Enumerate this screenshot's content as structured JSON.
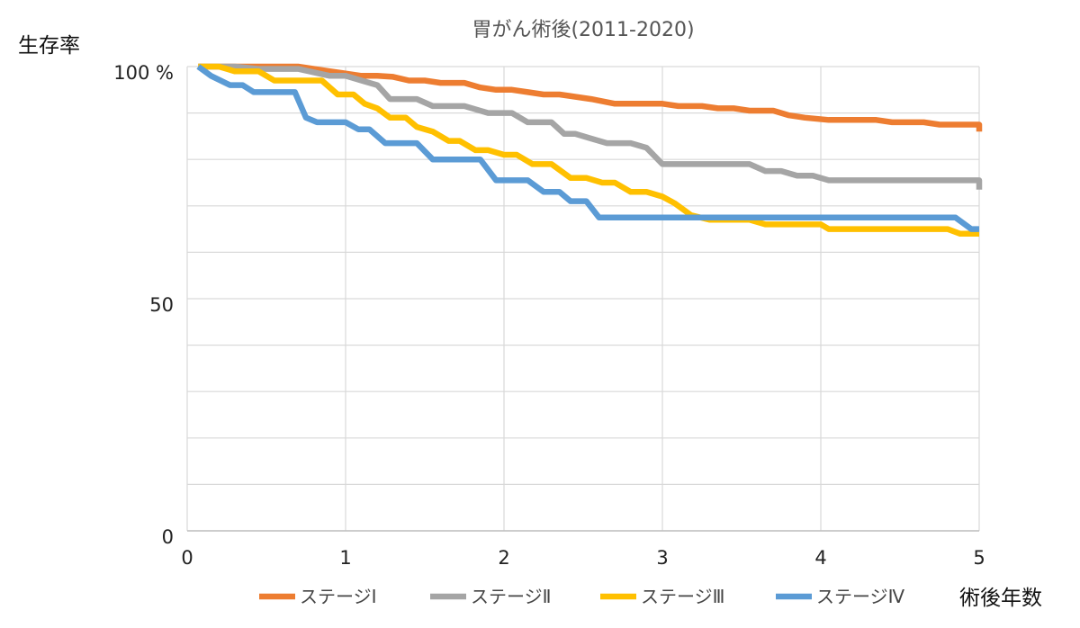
{
  "chart_data": {
    "type": "line",
    "title": "胃がん術後(2011-2020)",
    "ylabel": "生存率",
    "xlabel": "術後年数",
    "xlim": [
      0,
      5
    ],
    "ylim": [
      0,
      100
    ],
    "x_ticks": [
      "0",
      "1",
      "2",
      "3",
      "4",
      "5"
    ],
    "y_ticks": [
      {
        "value": 100,
        "label": "100 %"
      },
      {
        "value": 50,
        "label": "50"
      },
      {
        "value": 0,
        "label": "0"
      }
    ],
    "grid": true,
    "legend_position": "bottom",
    "series": [
      {
        "name": "ステージⅠ",
        "color": "#ED7D31",
        "points": [
          [
            0.07,
            100
          ],
          [
            0.5,
            100
          ],
          [
            0.7,
            100
          ],
          [
            0.8,
            99.5
          ],
          [
            0.9,
            99
          ],
          [
            1,
            98.5
          ],
          [
            1.1,
            98
          ],
          [
            1.2,
            98
          ],
          [
            1.3,
            97.8
          ],
          [
            1.4,
            97
          ],
          [
            1.5,
            97
          ],
          [
            1.6,
            96.5
          ],
          [
            1.75,
            96.5
          ],
          [
            1.85,
            95.5
          ],
          [
            1.95,
            95
          ],
          [
            2.05,
            95
          ],
          [
            2.15,
            94.5
          ],
          [
            2.25,
            94
          ],
          [
            2.35,
            94
          ],
          [
            2.55,
            93
          ],
          [
            2.7,
            92
          ],
          [
            2.85,
            92
          ],
          [
            3,
            92
          ],
          [
            3.1,
            91.5
          ],
          [
            3.25,
            91.5
          ],
          [
            3.35,
            91
          ],
          [
            3.45,
            91
          ],
          [
            3.55,
            90.5
          ],
          [
            3.7,
            90.5
          ],
          [
            3.8,
            89.5
          ],
          [
            3.9,
            89
          ],
          [
            4.05,
            88.5
          ],
          [
            4.2,
            88.5
          ],
          [
            4.35,
            88.5
          ],
          [
            4.45,
            88
          ],
          [
            4.55,
            88
          ],
          [
            4.65,
            88
          ],
          [
            4.75,
            87.5
          ],
          [
            4.85,
            87.5
          ],
          [
            5,
            87.5
          ],
          [
            5,
            86
          ]
        ]
      },
      {
        "name": "ステージⅡ",
        "color": "#A5A5A5",
        "points": [
          [
            0.07,
            100
          ],
          [
            0.3,
            100
          ],
          [
            0.45,
            99.5
          ],
          [
            0.7,
            99.5
          ],
          [
            0.9,
            98
          ],
          [
            1,
            98
          ],
          [
            1.1,
            97
          ],
          [
            1.2,
            96
          ],
          [
            1.28,
            93
          ],
          [
            1.45,
            93
          ],
          [
            1.55,
            91.5
          ],
          [
            1.75,
            91.5
          ],
          [
            1.9,
            90
          ],
          [
            2.05,
            90
          ],
          [
            2.15,
            88
          ],
          [
            2.3,
            88
          ],
          [
            2.38,
            85.5
          ],
          [
            2.45,
            85.5
          ],
          [
            2.55,
            84.5
          ],
          [
            2.65,
            83.5
          ],
          [
            2.8,
            83.5
          ],
          [
            2.9,
            82.5
          ],
          [
            3,
            79
          ],
          [
            3.1,
            79
          ],
          [
            3.2,
            79
          ],
          [
            3.3,
            79
          ],
          [
            3.5,
            79
          ],
          [
            3.55,
            79
          ],
          [
            3.65,
            77.5
          ],
          [
            3.75,
            77.5
          ],
          [
            3.85,
            76.5
          ],
          [
            3.95,
            76.5
          ],
          [
            4.05,
            75.5
          ],
          [
            4.2,
            75.5
          ],
          [
            4.5,
            75.5
          ],
          [
            4.8,
            75.5
          ],
          [
            5,
            75.5
          ],
          [
            5,
            73.5
          ]
        ]
      },
      {
        "name": "ステージⅢ",
        "color": "#FFC000",
        "points": [
          [
            0.07,
            100
          ],
          [
            0.2,
            100
          ],
          [
            0.3,
            99
          ],
          [
            0.45,
            99
          ],
          [
            0.55,
            97
          ],
          [
            0.65,
            97
          ],
          [
            0.75,
            97
          ],
          [
            0.85,
            97
          ],
          [
            0.95,
            94
          ],
          [
            1.05,
            94
          ],
          [
            1.12,
            92
          ],
          [
            1.2,
            91
          ],
          [
            1.28,
            89
          ],
          [
            1.38,
            89
          ],
          [
            1.45,
            87
          ],
          [
            1.55,
            86
          ],
          [
            1.65,
            84
          ],
          [
            1.72,
            84
          ],
          [
            1.82,
            82
          ],
          [
            1.9,
            82
          ],
          [
            2.0,
            81
          ],
          [
            2.08,
            81
          ],
          [
            2.18,
            79
          ],
          [
            2.3,
            79
          ],
          [
            2.42,
            76
          ],
          [
            2.52,
            76
          ],
          [
            2.62,
            75
          ],
          [
            2.7,
            75
          ],
          [
            2.8,
            73
          ],
          [
            2.9,
            73
          ],
          [
            3.0,
            72
          ],
          [
            3.08,
            70.5
          ],
          [
            3.18,
            68
          ],
          [
            3.3,
            67
          ],
          [
            3.45,
            67
          ],
          [
            3.55,
            67
          ],
          [
            3.65,
            66
          ],
          [
            3.8,
            66
          ],
          [
            4.0,
            66
          ],
          [
            4.05,
            65
          ],
          [
            4.2,
            65
          ],
          [
            4.4,
            65
          ],
          [
            4.6,
            65
          ],
          [
            4.8,
            65
          ],
          [
            4.88,
            64
          ],
          [
            5,
            64
          ]
        ]
      },
      {
        "name": "ステージⅣ",
        "color": "#5B9BD5",
        "points": [
          [
            0.07,
            100
          ],
          [
            0.15,
            98
          ],
          [
            0.27,
            96
          ],
          [
            0.35,
            96
          ],
          [
            0.42,
            94.5
          ],
          [
            0.55,
            94.5
          ],
          [
            0.68,
            94.5
          ],
          [
            0.75,
            89
          ],
          [
            0.82,
            88
          ],
          [
            0.9,
            88
          ],
          [
            1.0,
            88
          ],
          [
            1.08,
            86.5
          ],
          [
            1.15,
            86.5
          ],
          [
            1.25,
            83.5
          ],
          [
            1.35,
            83.5
          ],
          [
            1.45,
            83.5
          ],
          [
            1.55,
            80
          ],
          [
            1.65,
            80
          ],
          [
            1.85,
            80
          ],
          [
            1.95,
            75.5
          ],
          [
            2.05,
            75.5
          ],
          [
            2.15,
            75.5
          ],
          [
            2.25,
            73
          ],
          [
            2.35,
            73
          ],
          [
            2.42,
            71
          ],
          [
            2.52,
            71
          ],
          [
            2.6,
            67.5
          ],
          [
            2.8,
            67.5
          ],
          [
            3.0,
            67.5
          ],
          [
            3.5,
            67.5
          ],
          [
            4.0,
            67.5
          ],
          [
            4.5,
            67.5
          ],
          [
            4.85,
            67.5
          ],
          [
            4.95,
            65
          ],
          [
            5,
            65
          ]
        ]
      }
    ]
  }
}
